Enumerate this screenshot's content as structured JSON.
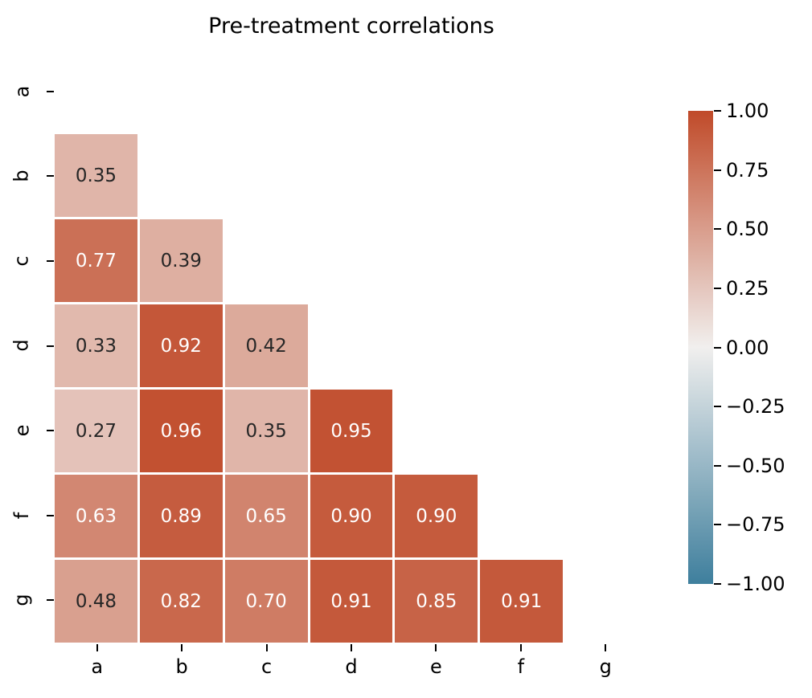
{
  "chart_data": {
    "type": "heatmap",
    "title": "Pre-treatment correlations",
    "categories": [
      "a",
      "b",
      "c",
      "d",
      "e",
      "f",
      "g"
    ],
    "xlabel": "",
    "ylabel": "",
    "mask": "upper triangle and diagonal hidden",
    "value_format": "2dp",
    "matrix": [
      [
        null,
        null,
        null,
        null,
        null,
        null,
        null
      ],
      [
        0.35,
        null,
        null,
        null,
        null,
        null,
        null
      ],
      [
        0.77,
        0.39,
        null,
        null,
        null,
        null,
        null
      ],
      [
        0.33,
        0.92,
        0.42,
        null,
        null,
        null,
        null
      ],
      [
        0.27,
        0.96,
        0.35,
        0.95,
        null,
        null,
        null
      ],
      [
        0.63,
        0.89,
        0.65,
        0.9,
        0.9,
        null,
        null
      ],
      [
        0.48,
        0.82,
        0.7,
        0.91,
        0.85,
        0.91,
        null
      ]
    ],
    "colorbar": {
      "position": "right",
      "vmin": -1,
      "vmax": 1,
      "tick_labels": [
        "1.00",
        "0.75",
        "0.50",
        "0.25",
        "0.00",
        "−0.25",
        "−0.50",
        "−0.75",
        "−1.00"
      ],
      "color_positive": "#c04a29",
      "color_zero": "#f1efee",
      "color_negative": "#3e7f9d"
    },
    "annotation_text_dark": "#262626",
    "annotation_text_light": "#ffffff",
    "grid_lines": "off",
    "cell_gap_color": "#ffffff"
  }
}
